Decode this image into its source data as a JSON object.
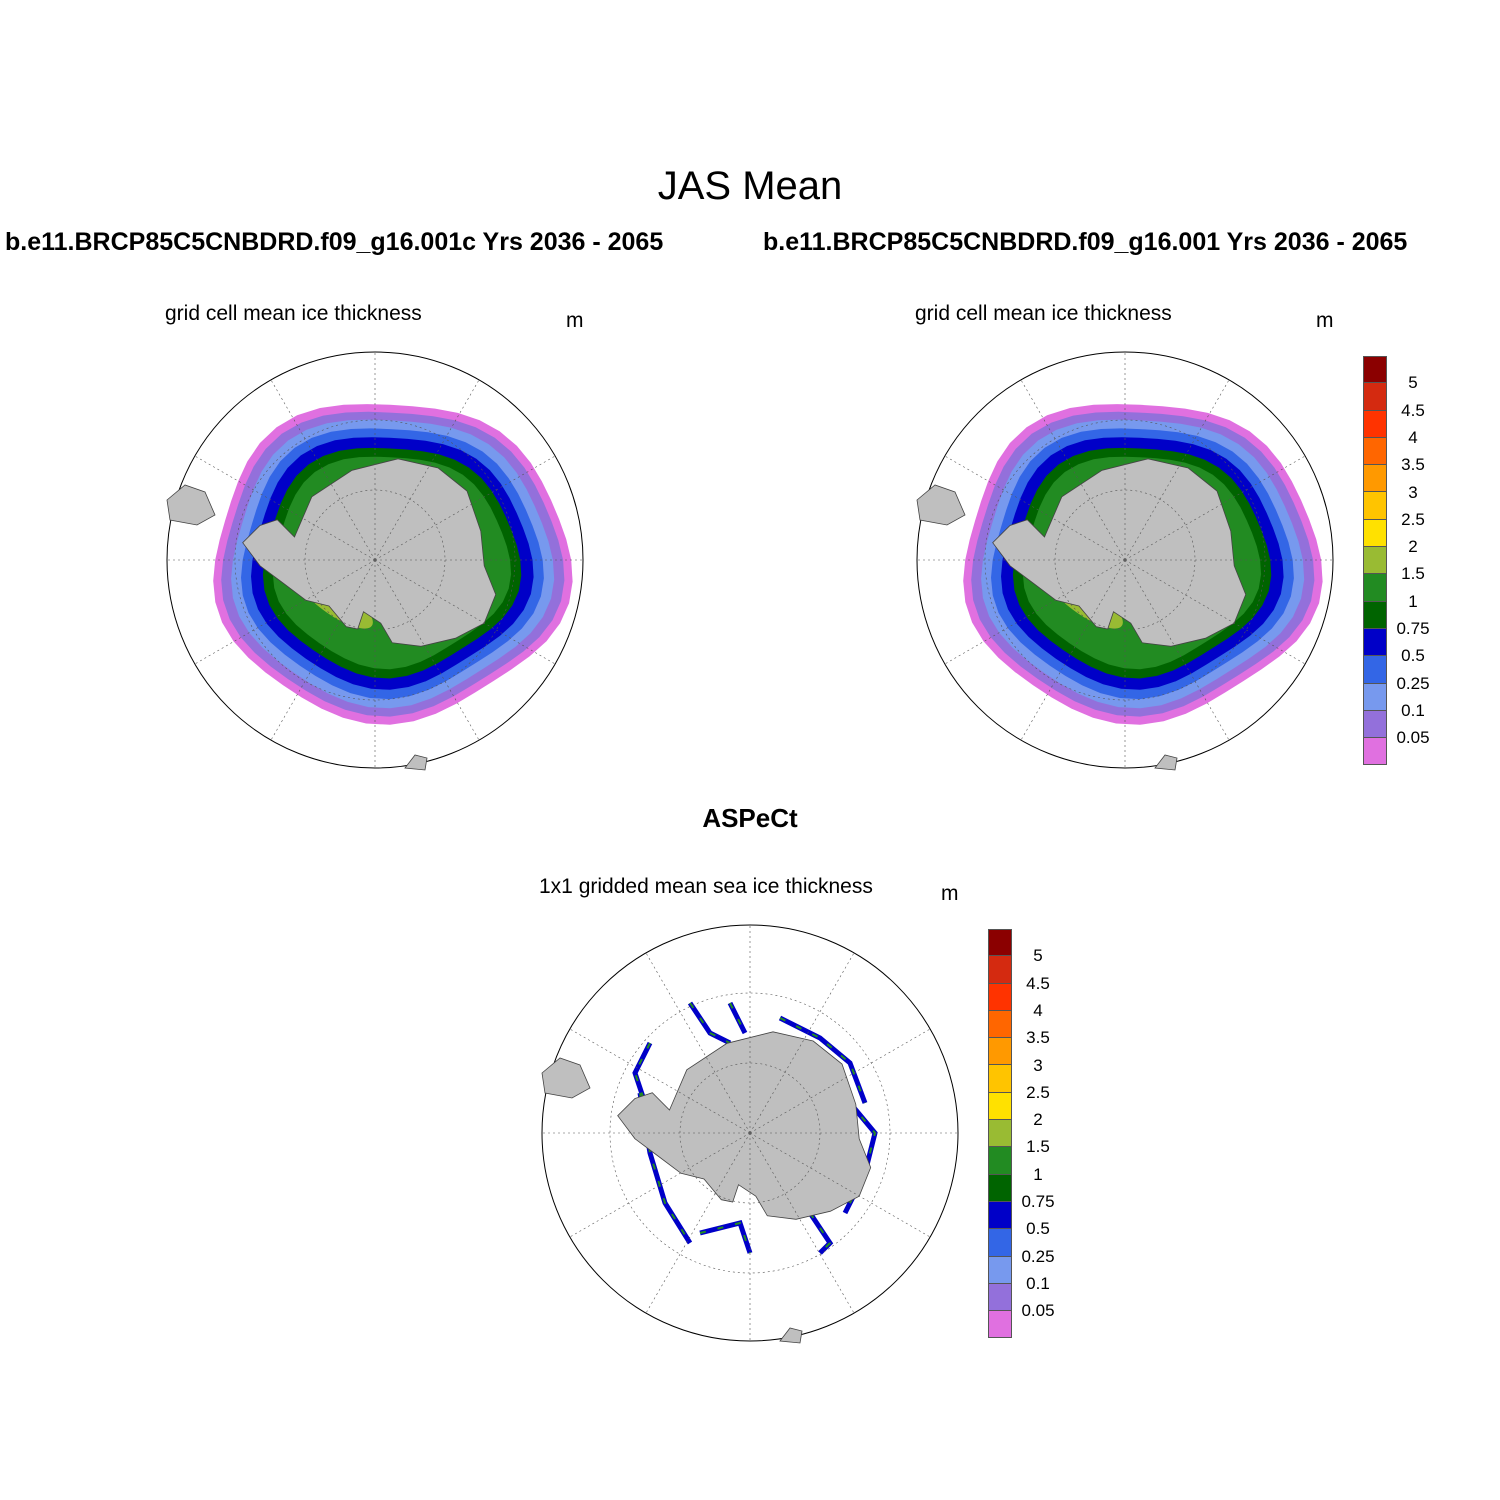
{
  "figure": {
    "title": "JAS Mean",
    "left_case": "b.e11.BRCP85C5CNBDRD.f09_g16.001c  Yrs 2036 - 2065",
    "right_case": "b.e11.BRCP85C5CNBDRD.f09_g16.001  Yrs 2036 - 2065",
    "observation_title": "ASPeCt"
  },
  "panels": {
    "left": {
      "subtitle": "grid cell mean ice thickness",
      "unit": "m"
    },
    "right": {
      "subtitle": "grid cell mean ice thickness",
      "unit": "m"
    },
    "bottom": {
      "subtitle": "1x1 gridded mean sea ice thickness",
      "unit": "m"
    }
  },
  "colorbar": {
    "labels": [
      "5",
      "4.5",
      "4",
      "3.5",
      "3",
      "2.5",
      "2",
      "1.5",
      "1",
      "0.75",
      "0.5",
      "0.25",
      "0.1",
      "0.05"
    ],
    "colors": [
      "#8b0000",
      "#d42a10",
      "#ff3300",
      "#ff6600",
      "#ff9900",
      "#ffc400",
      "#ffe100",
      "#99bb33",
      "#228b22",
      "#006400",
      "#0000c8",
      "#3366e6",
      "#7799ee",
      "#9370db",
      "#e070e0"
    ]
  },
  "map_colors": {
    "land": "#bfbfbf",
    "thickness_bands": [
      "#e070e0",
      "#9370db",
      "#7799ee",
      "#3366e6",
      "#0000c8",
      "#006400",
      "#228b22",
      "#99bb33",
      "#ffe100"
    ]
  }
}
